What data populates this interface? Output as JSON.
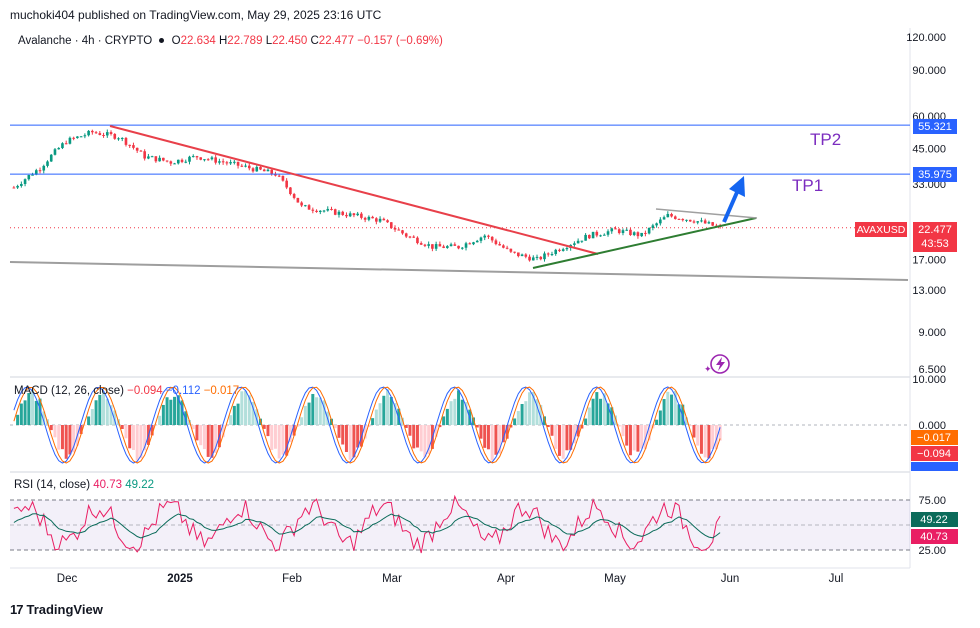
{
  "header": {
    "publisher": "muchoki404 published on TradingView.com, May 29, 2025 23:16 UTC"
  },
  "legend": {
    "symbol": "Avalanche · 4h · CRYPTO",
    "o_label": "O",
    "o": "22.634",
    "h_label": "H",
    "h": "22.789",
    "l_label": "L",
    "l": "22.450",
    "c_label": "C",
    "c": "22.477",
    "change": "−0.157 (−0.69%)"
  },
  "annotations": {
    "tp1": "TP1",
    "tp2": "TP2"
  },
  "macd_legend": {
    "name": "MACD (12, 26, close)",
    "v1": "−0.094",
    "v2": "−0.112",
    "v3": "−0.017"
  },
  "rsi_legend": {
    "name": "RSI (14, close)",
    "v1": "40.73",
    "v2": "49.22"
  },
  "price_tag": {
    "symbol": "AVAXUSD",
    "price": "22.477",
    "countdown": "43:53"
  },
  "footer": {
    "brand": "TradingView"
  },
  "colors": {
    "up": "#089981",
    "down": "#f23645",
    "red_trend": "#e8404a",
    "green_trend": "#2e7d32",
    "level": "#2962ff",
    "tp": "#7b2cbf",
    "rsi": "#e91e63"
  },
  "chart_data": [
    {
      "type": "candlestick",
      "title": "Avalanche · 4h · CRYPTO",
      "scale": "log",
      "ylim": [
        6.5,
        120
      ],
      "y_ticks": [
        "120.000",
        "90.000",
        "60.000",
        "45.000",
        "33.000",
        "17.000",
        "13.000",
        "9.000",
        "6.500"
      ],
      "y_tick_values": [
        120,
        90,
        60,
        45,
        33,
        17,
        13,
        9,
        6.5
      ],
      "x_ticks": [
        "Dec",
        "2025",
        "Feb",
        "Mar",
        "Apr",
        "May",
        "Jun",
        "Jul"
      ],
      "levels": [
        {
          "value": 55.321,
          "label": "55.321"
        },
        {
          "value": 35.975,
          "label": "35.975"
        }
      ],
      "last_price": 22.477,
      "series": [
        {
          "name": "AVAXUSD",
          "x": [
            "Nov 20",
            "Nov 27",
            "Dec 4",
            "Dec 11",
            "Dec 18",
            "Dec 25",
            "Jan 1",
            "Jan 8",
            "Jan 15",
            "Jan 22",
            "Jan 29",
            "Feb 5",
            "Feb 12",
            "Feb 19",
            "Feb 26",
            "Mar 5",
            "Mar 12",
            "Mar 19",
            "Mar 26",
            "Apr 2",
            "Apr 9",
            "Apr 16",
            "Apr 23",
            "Apr 30",
            "May 7",
            "May 14",
            "May 21",
            "May 29"
          ],
          "values": [
            32,
            38,
            48,
            52,
            50,
            42,
            40,
            42,
            40,
            38,
            36,
            27,
            26,
            25,
            24,
            21,
            19,
            19,
            21,
            18,
            17,
            19,
            21,
            22,
            21,
            25,
            24,
            22.477
          ]
        }
      ],
      "annotations": [
        "TP1",
        "TP2"
      ]
    },
    {
      "type": "histogram",
      "title": "MACD (12, 26, close)",
      "y_ticks": [
        "10.000",
        "0.000"
      ],
      "y_tick_values": [
        10,
        0
      ],
      "series": [
        {
          "name": "MACD",
          "last": -0.094
        },
        {
          "name": "Signal",
          "last": -0.112
        },
        {
          "name": "Histogram",
          "last": -0.017
        }
      ]
    },
    {
      "type": "line",
      "title": "RSI (14, close)",
      "y_ticks": [
        "75.00",
        "25.00"
      ],
      "y_tick_values": [
        75,
        25
      ],
      "series": [
        {
          "name": "RSI",
          "last": 40.73
        },
        {
          "name": "RSI-based MA",
          "last": 49.22
        }
      ]
    }
  ]
}
